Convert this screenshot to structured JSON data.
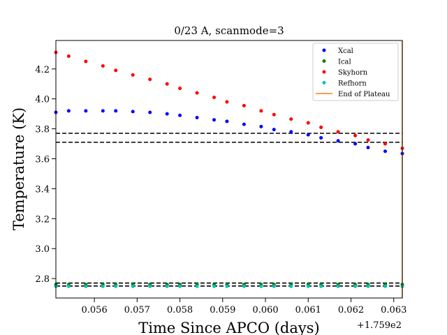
{
  "chart_data": {
    "type": "scatter",
    "title": "0/23 A, scanmode=3",
    "xlabel": "Time Since APCO (days)",
    "ylabel": "Temperature (K)",
    "x_offset_label": "+1.759e2",
    "xlim": [
      175.9551,
      175.9632
    ],
    "ylim": [
      2.67,
      4.39
    ],
    "xticks": [
      0.056,
      0.057,
      0.058,
      0.059,
      0.06,
      0.061,
      0.062,
      0.063
    ],
    "xtick_labels": [
      "0.056",
      "0.057",
      "0.058",
      "0.059",
      "0.060",
      "0.061",
      "0.062",
      "0.063"
    ],
    "yticks": [
      2.8,
      3.0,
      3.2,
      3.4,
      3.6,
      3.8,
      4.0,
      4.2
    ],
    "ytick_labels": [
      "2.8",
      "3.0",
      "3.2",
      "3.4",
      "3.6",
      "3.8",
      "4.0",
      "4.2"
    ],
    "grid": false,
    "legend_position": "top-right",
    "x": [
      175.9551,
      175.9554,
      175.9558,
      175.9562,
      175.9565,
      175.9569,
      175.9573,
      175.9577,
      175.958,
      175.9584,
      175.9588,
      175.9591,
      175.9595,
      175.9599,
      175.9602,
      175.9606,
      175.961,
      175.9613,
      175.9617,
      175.9621,
      175.9624,
      175.9628,
      175.9632
    ],
    "series": [
      {
        "name": "Xcal",
        "color": "#0000ff",
        "values": [
          3.91,
          3.92,
          3.92,
          3.92,
          3.92,
          3.915,
          3.91,
          3.9,
          3.89,
          3.875,
          3.86,
          3.85,
          3.83,
          3.815,
          3.795,
          3.78,
          3.76,
          3.74,
          3.72,
          3.7,
          3.675,
          3.65,
          3.635
        ]
      },
      {
        "name": "Ical",
        "color": "#008000",
        "values": [
          2.76,
          2.76,
          2.76,
          2.76,
          2.76,
          2.76,
          2.76,
          2.76,
          2.76,
          2.76,
          2.76,
          2.76,
          2.76,
          2.76,
          2.76,
          2.76,
          2.76,
          2.76,
          2.76,
          2.76,
          2.76,
          2.76,
          2.76
        ]
      },
      {
        "name": "Skyhorn",
        "color": "#ff0000",
        "values": [
          4.31,
          4.285,
          4.25,
          4.22,
          4.19,
          4.16,
          4.13,
          4.1,
          4.07,
          4.04,
          4.01,
          3.98,
          3.955,
          3.92,
          3.895,
          3.865,
          3.84,
          3.81,
          3.78,
          3.755,
          3.725,
          3.7,
          3.67
        ]
      },
      {
        "name": "Refhorn",
        "color": "#00bfbf",
        "values": [
          2.748,
          2.748,
          2.748,
          2.748,
          2.748,
          2.748,
          2.748,
          2.748,
          2.748,
          2.748,
          2.748,
          2.748,
          2.748,
          2.748,
          2.748,
          2.748,
          2.748,
          2.748,
          2.748,
          2.748,
          2.748,
          2.748,
          2.748
        ]
      }
    ],
    "hlines": [
      3.77,
      3.71,
      2.77,
      2.75
    ],
    "vline": {
      "name": "End of Plateau",
      "color": "#ff7f0e",
      "x": 175.9632
    }
  }
}
